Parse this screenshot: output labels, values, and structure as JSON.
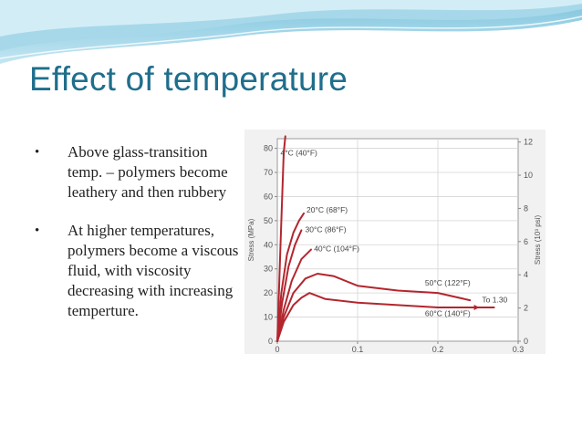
{
  "slide": {
    "title": "Effect of temperature",
    "bullets": [
      {
        "marker": "•",
        "text": "Above glass-transition temp. – polymers become leathery and then rubbery"
      },
      {
        "marker": "•",
        "text": "At higher temperatures, polymers become a viscous fluid, with viscosity decreasing with increasing temperture."
      }
    ]
  },
  "colors": {
    "title": "#1f6e8c",
    "curve": "#b3262e",
    "banner_light": "#d6eef6",
    "banner_mid": "#8fcde3"
  },
  "chart_data": {
    "type": "line",
    "title": "",
    "xlabel": "",
    "ylabel": "Stress (MPa)",
    "y2label": "Stress (10³ psi)",
    "xlim": [
      0,
      0.3
    ],
    "ylim": [
      0,
      84
    ],
    "y2lim": [
      0,
      12.2
    ],
    "xticks": [
      "0",
      "0.1",
      "0.2",
      "0.3"
    ],
    "yticks": [
      "0",
      "10",
      "20",
      "30",
      "40",
      "50",
      "60",
      "70",
      "80"
    ],
    "y2ticks": [
      "0",
      "2",
      "4",
      "6",
      "8",
      "10",
      "12"
    ],
    "grid": true,
    "legend": "none",
    "series": [
      {
        "name": "4°C (40°F)",
        "x": [
          0,
          0.004,
          0.008,
          0.01
        ],
        "y": [
          0,
          40,
          78,
          85
        ]
      },
      {
        "name": "20°C (68°F)",
        "x": [
          0,
          0.005,
          0.012,
          0.02,
          0.027,
          0.033
        ],
        "y": [
          0,
          20,
          36,
          45,
          50,
          53
        ]
      },
      {
        "name": "30°C (86°F)",
        "x": [
          0,
          0.006,
          0.014,
          0.022,
          0.03
        ],
        "y": [
          0,
          16,
          31,
          40,
          46
        ]
      },
      {
        "name": "40°C (104°F)",
        "x": [
          0,
          0.008,
          0.018,
          0.03,
          0.042
        ],
        "y": [
          0,
          13,
          25,
          34,
          38
        ]
      },
      {
        "name": "50°C (122°F)",
        "x": [
          0,
          0.008,
          0.02,
          0.035,
          0.05,
          0.07,
          0.1,
          0.15,
          0.2,
          0.24
        ],
        "y": [
          0,
          10,
          20,
          26,
          28,
          27,
          23,
          21,
          20,
          17
        ]
      },
      {
        "name": "60°C (140°F)",
        "x": [
          0,
          0.008,
          0.02,
          0.03,
          0.04,
          0.06,
          0.1,
          0.15,
          0.2,
          0.27
        ],
        "y": [
          0,
          8,
          15,
          18,
          20,
          17.5,
          16,
          15,
          14,
          14
        ]
      }
    ],
    "annotations": [
      "To 1.30"
    ]
  }
}
